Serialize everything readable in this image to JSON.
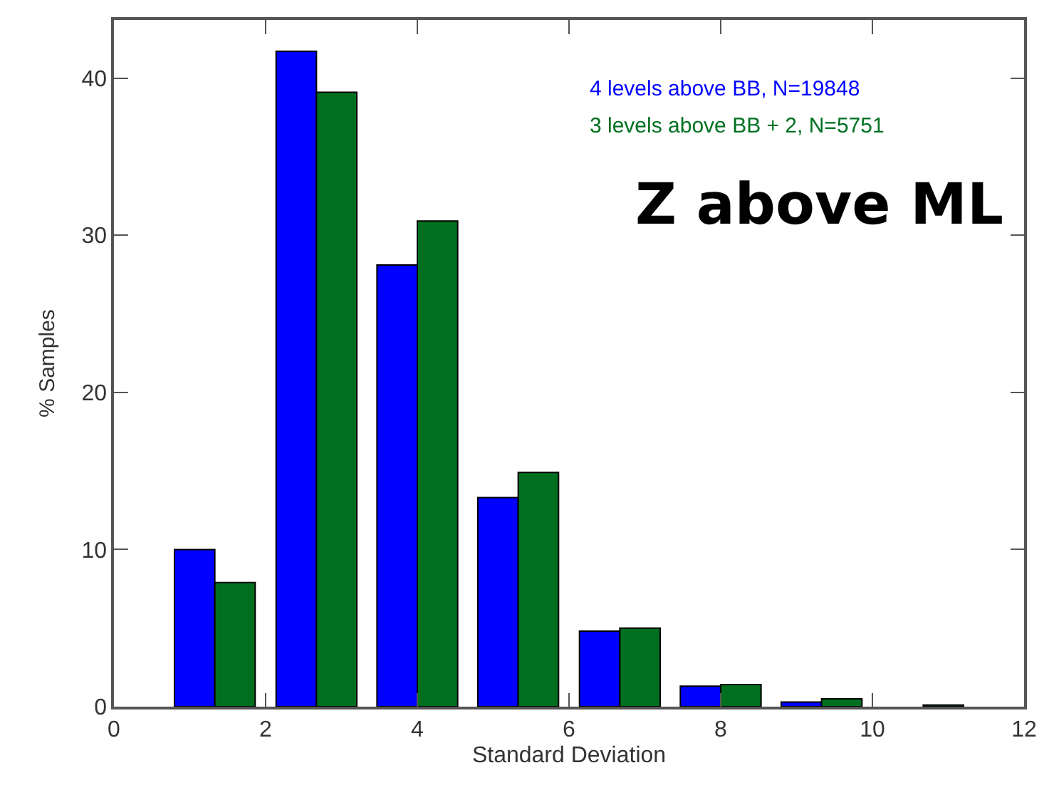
{
  "chart_data": {
    "type": "bar",
    "xlabel": "Standard Deviation",
    "ylabel": "% Samples",
    "x": [
      1.33,
      2.67,
      4,
      5.33,
      6.67,
      8,
      9.33,
      10.67
    ],
    "series": [
      {
        "name": "4 levels above BB, N=19848",
        "color": "#0000ff",
        "values": [
          10.0,
          41.7,
          28.1,
          13.3,
          4.8,
          1.3,
          0.3,
          null
        ]
      },
      {
        "name": "3 levels above BB + 2, N=5751",
        "color": "#007020",
        "values": [
          7.9,
          39.1,
          30.9,
          14.9,
          5.0,
          1.4,
          0.5,
          0.1
        ]
      }
    ],
    "annotations": [
      "Z above ML"
    ],
    "xlim": [
      0,
      12
    ],
    "xticks": [
      0,
      2,
      4,
      6,
      8,
      10,
      12
    ],
    "ylim": [
      0,
      43.7
    ],
    "yticks": [
      0,
      10,
      20,
      30,
      40
    ],
    "legend": false
  }
}
